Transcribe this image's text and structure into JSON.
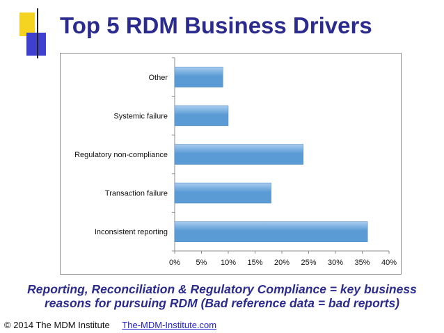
{
  "slide": {
    "title": "Top 5 RDM Business Drivers",
    "caption_line1": "Reporting, Reconciliation & Regulatory Compliance = key business",
    "caption_line2": "reasons for pursuing RDM (Bad reference data = bad reports)",
    "footer_copyright": "© 2014 The MDM Institute",
    "footer_link": "The-MDM-Institute.com"
  },
  "colors": {
    "title": "#2b2b8f",
    "bar_fill": "#5b9bd5",
    "bar_highlight": "#a9cdf0",
    "deco_yellow": "#f5d321",
    "deco_blue": "#3f3fd0"
  },
  "chart_data": {
    "type": "bar",
    "orientation": "horizontal",
    "categories": [
      "Other",
      "Systemic failure",
      "Regulatory non-compliance",
      "Transaction failure",
      "Inconsistent reporting"
    ],
    "values": [
      9,
      10,
      24,
      18,
      36
    ],
    "unit": "%",
    "xlim": [
      0,
      40
    ],
    "xticks": [
      "0%",
      "5%",
      "10%",
      "15%",
      "20%",
      "25%",
      "30%",
      "35%",
      "40%"
    ],
    "grid": false,
    "legend": "none"
  }
}
